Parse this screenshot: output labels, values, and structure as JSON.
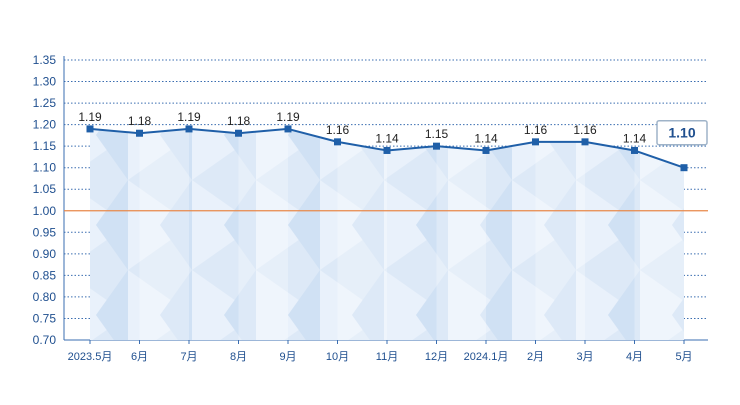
{
  "chart_data": {
    "type": "area",
    "categories": [
      "2023.5月",
      "6月",
      "7月",
      "8月",
      "9月",
      "10月",
      "11月",
      "12月",
      "2024.1月",
      "2月",
      "3月",
      "4月",
      "5月"
    ],
    "series": [
      {
        "values": [
          1.19,
          1.18,
          1.19,
          1.18,
          1.19,
          1.16,
          1.14,
          1.15,
          1.14,
          1.16,
          1.16,
          1.14,
          1.1
        ],
        "labels": [
          "1.19",
          "1.18",
          "1.19",
          "1.18",
          "1.19",
          "1.16",
          "1.14",
          "1.15",
          "1.14",
          "1.16",
          "1.16",
          "1.14",
          "1.10"
        ]
      }
    ],
    "ylim": [
      0.7,
      1.35
    ],
    "yticks": [
      "0.70",
      "0.75",
      "0.80",
      "0.85",
      "0.90",
      "0.95",
      "1.00",
      "1.05",
      "1.10",
      "1.15",
      "1.20",
      "1.25",
      "1.30",
      "1.35"
    ],
    "reference_line": 1.0,
    "highlight_last_value": "1.10",
    "grid": "horizontal dotted",
    "colors": {
      "line": "#1f5fa8",
      "marker": "#1f5fa8",
      "area_fill": "#dce9f7",
      "area_fill_alt": "#c9dcf2",
      "grid": "#3a6db0",
      "reference": "#e8884a",
      "axis_text": "#1f4f8f",
      "highlight_border": "#9fb3c8"
    }
  }
}
